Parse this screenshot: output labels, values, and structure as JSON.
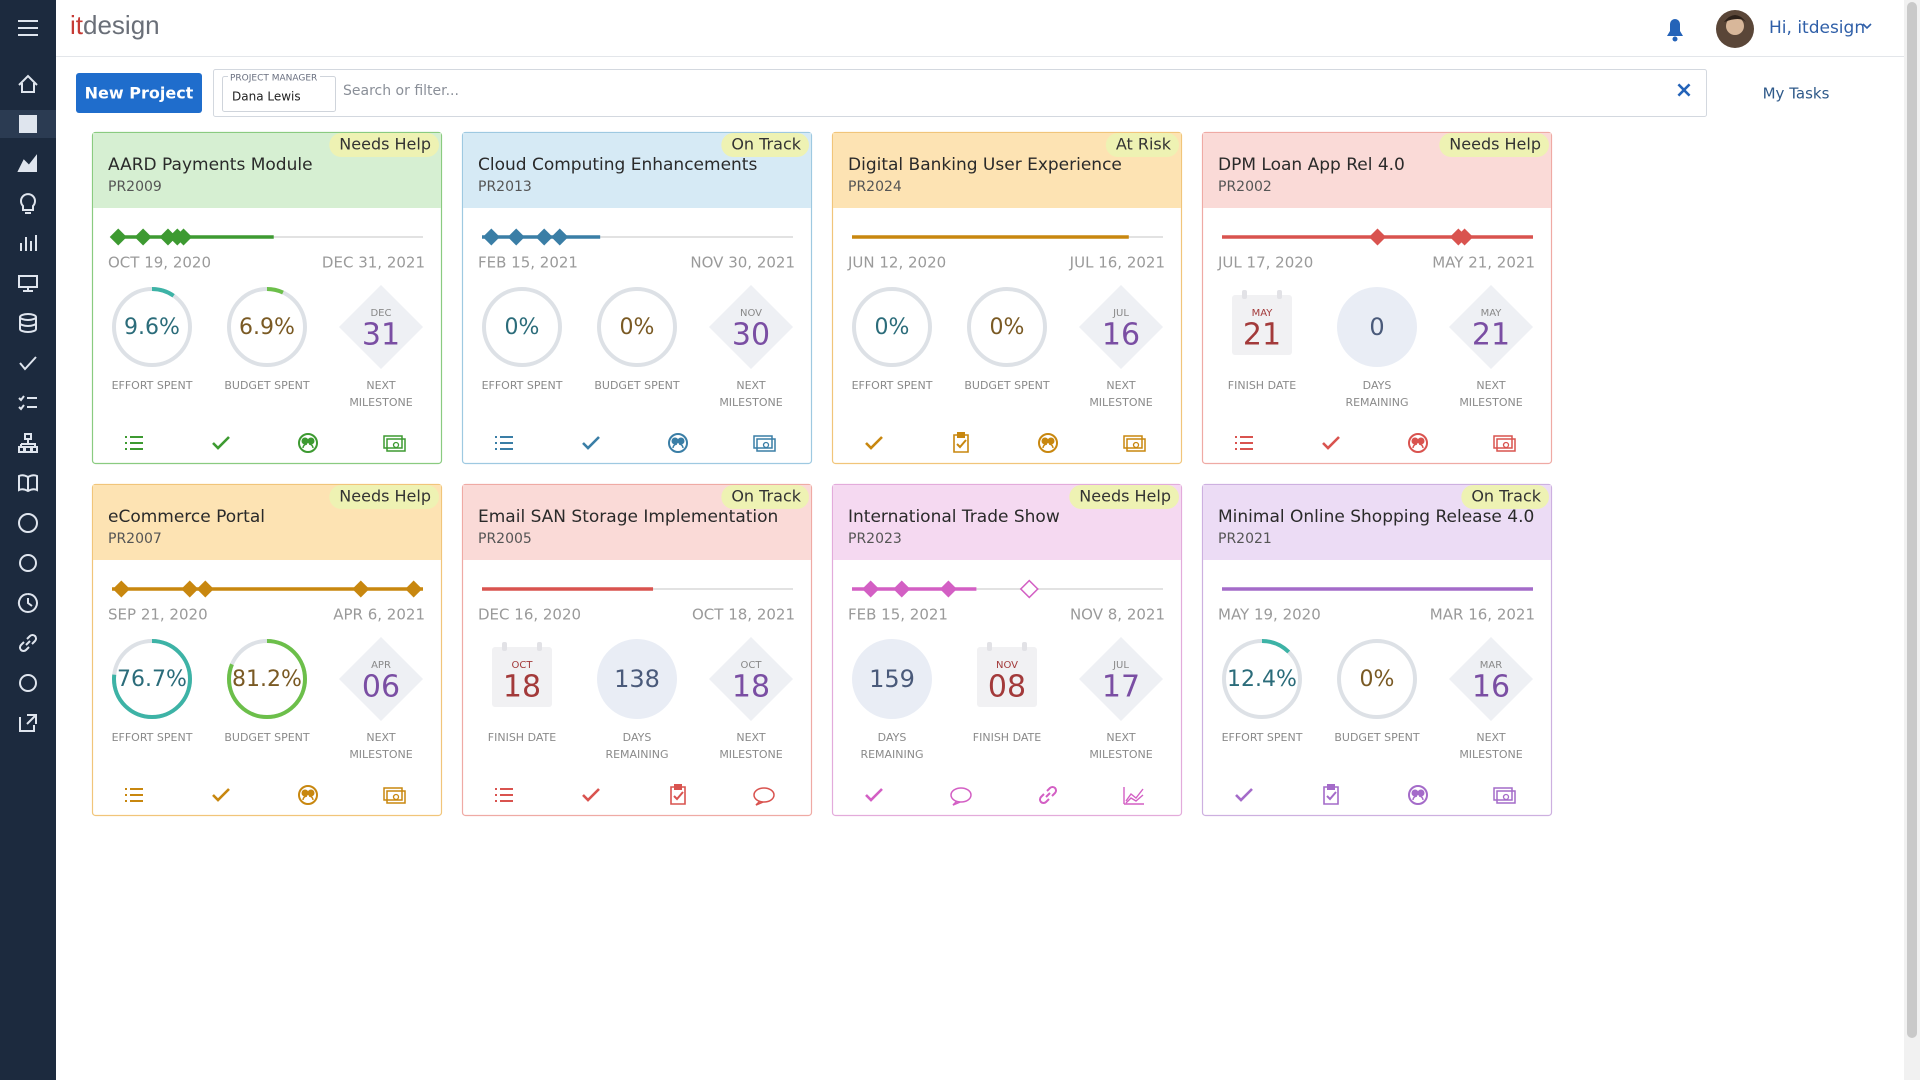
{
  "header": {
    "logo_it": "it",
    "logo_design": "design",
    "greeting": "Hi, itdesign"
  },
  "toolbar": {
    "new_project": "New Project",
    "filter_label": "PROJECT MANAGER",
    "filter_value": "Dana Lewis",
    "search_placeholder": "Search or filter...",
    "clear": "×",
    "my_tasks": "My Tasks"
  },
  "cards": [
    {
      "status": "Needs Help",
      "title": "AARD Payments Module",
      "code": "PR2009",
      "start": "OCT 19, 2020",
      "end": "DEC 31, 2021",
      "color": "#3d9a31",
      "header_color": "#d6efd2",
      "border_color": "#8acb80",
      "metrics": [
        {
          "kind": "ring",
          "value": "9.6%",
          "label": [
            "EFFORT SPENT"
          ]
        },
        {
          "kind": "ring",
          "value": "6.9%",
          "label": [
            "BUDGET SPENT"
          ]
        },
        {
          "kind": "diamond",
          "month": "DEC",
          "day": "31",
          "label": [
            "NEXT",
            "MILESTONE"
          ]
        }
      ]
    },
    {
      "status": "On Track",
      "title": "Cloud Computing Enhancements",
      "code": "PR2013",
      "start": "FEB 15, 2021",
      "end": "NOV 30, 2021",
      "color": "#3a7ea6",
      "header_color": "#d6eaf5",
      "border_color": "#9ec9e1",
      "metrics": [
        {
          "kind": "ring",
          "value": "0%",
          "label": [
            "EFFORT SPENT"
          ]
        },
        {
          "kind": "ring",
          "value": "0%",
          "label": [
            "BUDGET SPENT"
          ]
        },
        {
          "kind": "diamond",
          "month": "NOV",
          "day": "30",
          "label": [
            "NEXT",
            "MILESTONE"
          ]
        }
      ]
    },
    {
      "status": "At Risk",
      "title": "Digital Banking User Experience",
      "code": "PR2024",
      "start": "JUN 12, 2020",
      "end": "JUL 16, 2021",
      "color": "#c8870f",
      "header_color": "#fde3b3",
      "border_color": "#f1c57a",
      "metrics": [
        {
          "kind": "ring",
          "value": "0%",
          "label": [
            "EFFORT SPENT"
          ]
        },
        {
          "kind": "ring",
          "value": "0%",
          "label": [
            "BUDGET SPENT"
          ]
        },
        {
          "kind": "diamond",
          "month": "JUL",
          "day": "16",
          "label": [
            "NEXT",
            "MILESTONE"
          ]
        }
      ]
    },
    {
      "status": "Needs Help",
      "title": "DPM Loan App Rel 4.0",
      "code": "PR2002",
      "start": "JUL 17, 2020",
      "end": "MAY 21, 2021",
      "color": "#d9534f",
      "header_color": "#fadad7",
      "border_color": "#efaaa4",
      "metrics": [
        {
          "kind": "calendar",
          "month": "MAY",
          "day": "21",
          "label": [
            "FINISH DATE"
          ]
        },
        {
          "kind": "disc",
          "value": "0",
          "label": [
            "DAYS",
            "REMAINING"
          ]
        },
        {
          "kind": "diamond",
          "month": "MAY",
          "day": "21",
          "label": [
            "NEXT",
            "MILESTONE"
          ]
        }
      ]
    },
    {
      "status": "Needs Help",
      "title": "eCommerce Portal",
      "code": "PR2007",
      "start": "SEP 21, 2020",
      "end": "APR 6, 2021",
      "color": "#c8870f",
      "header_color": "#fde3b3",
      "border_color": "#f1c57a",
      "metrics": [
        {
          "kind": "ring",
          "value": "76.7%",
          "label": [
            "EFFORT SPENT"
          ]
        },
        {
          "kind": "ring",
          "value": "81.2%",
          "label": [
            "BUDGET SPENT"
          ]
        },
        {
          "kind": "diamond",
          "month": "APR",
          "day": "06",
          "label": [
            "NEXT",
            "MILESTONE"
          ]
        }
      ]
    },
    {
      "status": "On Track",
      "title": "Email SAN Storage Implementation",
      "code": "PR2005",
      "start": "DEC 16, 2020",
      "end": "OCT 18, 2021",
      "color": "#d9534f",
      "header_color": "#fadad7",
      "border_color": "#efaaa4",
      "metrics": [
        {
          "kind": "calendar",
          "month": "OCT",
          "day": "18",
          "label": [
            "FINISH DATE"
          ]
        },
        {
          "kind": "disc",
          "value": "138",
          "label": [
            "DAYS",
            "REMAINING"
          ]
        },
        {
          "kind": "diamond",
          "month": "OCT",
          "day": "18",
          "label": [
            "NEXT",
            "MILESTONE"
          ]
        }
      ]
    },
    {
      "status": "Needs Help",
      "title": "International Trade Show",
      "code": "PR2023",
      "start": "FEB 15, 2021",
      "end": "NOV 8, 2021",
      "color": "#d35fc4",
      "header_color": "#f5d9f1",
      "border_color": "#e3abdb",
      "metrics": [
        {
          "kind": "disc",
          "value": "159",
          "label": [
            "DAYS",
            "REMAINING"
          ]
        },
        {
          "kind": "calendar",
          "month": "NOV",
          "day": "08",
          "label": [
            "FINISH DATE"
          ]
        },
        {
          "kind": "diamond",
          "month": "JUL",
          "day": "17",
          "label": [
            "NEXT",
            "MILESTONE"
          ]
        }
      ]
    },
    {
      "status": "On Track",
      "title": "Minimal Online Shopping Release 4.0",
      "code": "PR2021",
      "start": "MAY 19, 2020",
      "end": "MAR 16, 2021",
      "color": "#a46bc9",
      "header_color": "#ecdcf5",
      "border_color": "#cdb0e0",
      "metrics": [
        {
          "kind": "ring",
          "value": "12.4%",
          "label": [
            "EFFORT SPENT"
          ]
        },
        {
          "kind": "ring",
          "value": "0%",
          "label": [
            "BUDGET SPENT"
          ]
        },
        {
          "kind": "diamond",
          "month": "MAR",
          "day": "16",
          "label": [
            "NEXT",
            "MILESTONE"
          ]
        }
      ]
    }
  ]
}
